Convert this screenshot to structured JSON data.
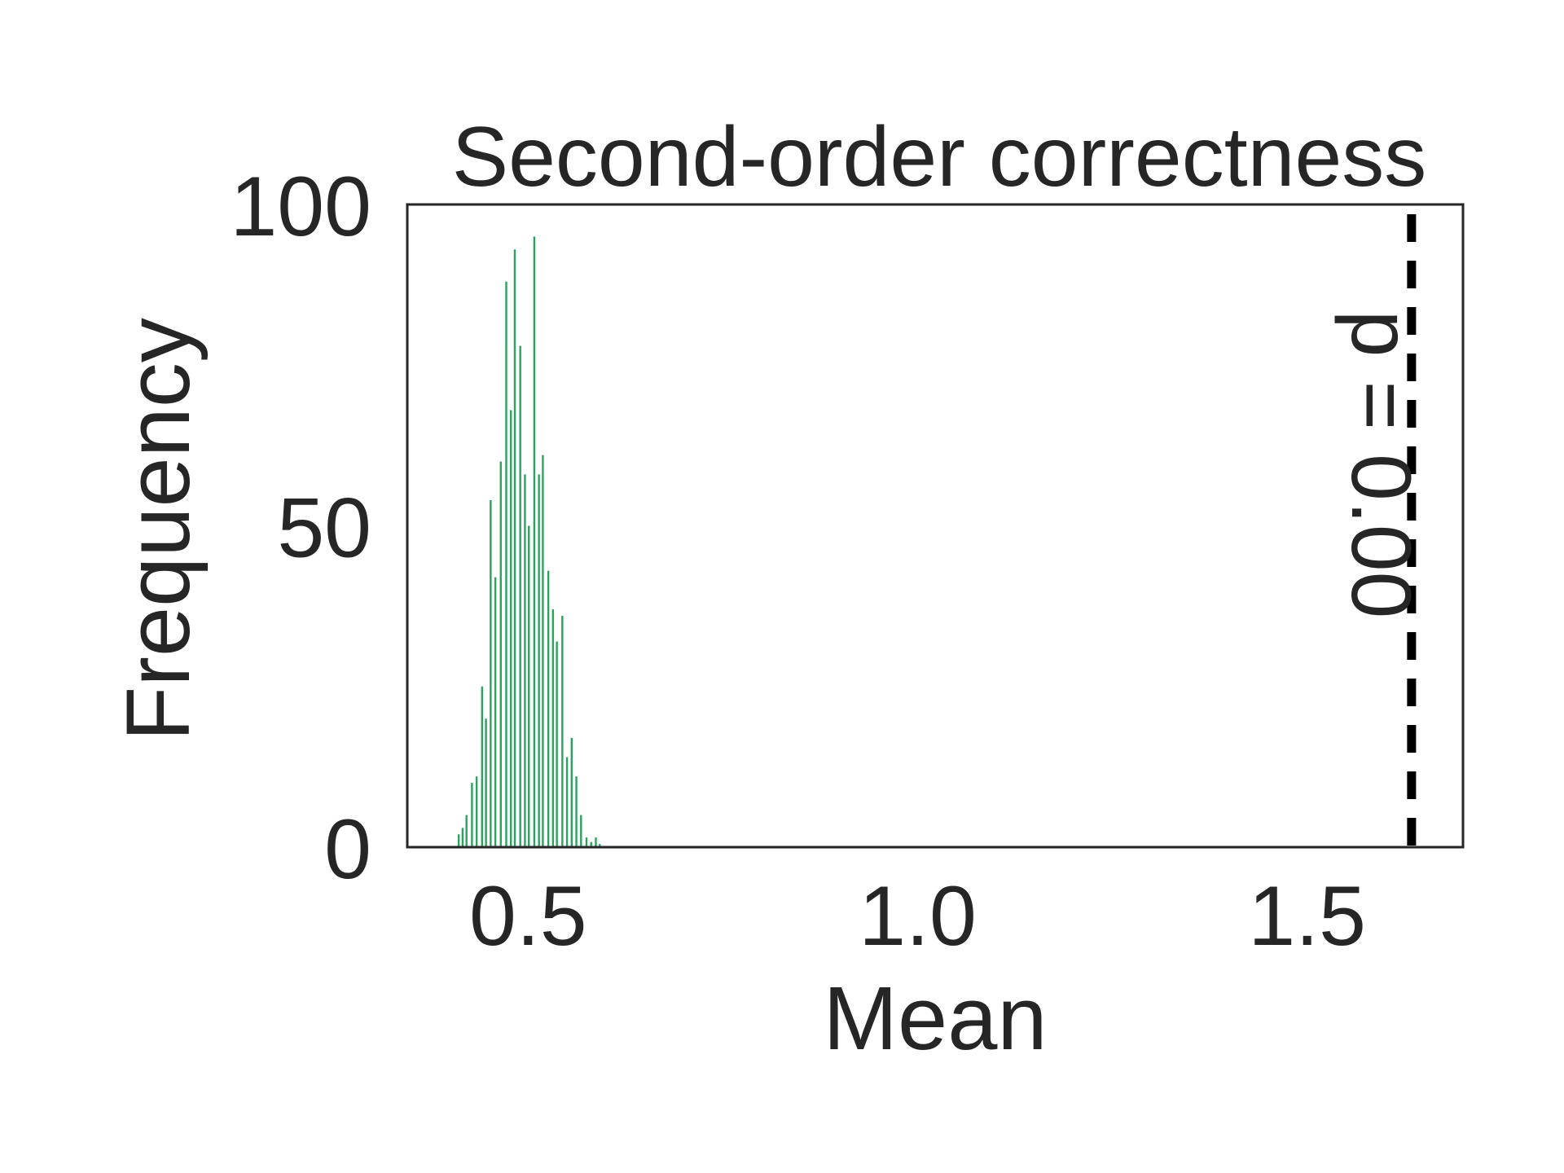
{
  "chart_data": {
    "type": "bar",
    "title": "Second-order correctness",
    "xlabel": "Mean",
    "ylabel": "Frequency",
    "xlim": [
      0.345,
      1.7
    ],
    "ylim": [
      0,
      100
    ],
    "xticks": [
      0.5,
      1.0,
      1.5
    ],
    "xtick_labels": [
      "0.5",
      "1.0",
      "1.5"
    ],
    "yticks": [
      0,
      50,
      100
    ],
    "ytick_labels": [
      "0",
      "50",
      "100"
    ],
    "grid": false,
    "bar_color": "#2ca25f",
    "marker_color": "#000000",
    "bars": [
      {
        "x": 0.411,
        "y": 2
      },
      {
        "x": 0.416,
        "y": 3
      },
      {
        "x": 0.421,
        "y": 5
      },
      {
        "x": 0.428,
        "y": 10
      },
      {
        "x": 0.434,
        "y": 11
      },
      {
        "x": 0.441,
        "y": 25
      },
      {
        "x": 0.446,
        "y": 20
      },
      {
        "x": 0.452,
        "y": 54
      },
      {
        "x": 0.458,
        "y": 42
      },
      {
        "x": 0.465,
        "y": 60
      },
      {
        "x": 0.472,
        "y": 88
      },
      {
        "x": 0.478,
        "y": 68
      },
      {
        "x": 0.483,
        "y": 93
      },
      {
        "x": 0.49,
        "y": 78
      },
      {
        "x": 0.496,
        "y": 58
      },
      {
        "x": 0.501,
        "y": 50
      },
      {
        "x": 0.508,
        "y": 95
      },
      {
        "x": 0.514,
        "y": 58
      },
      {
        "x": 0.519,
        "y": 61
      },
      {
        "x": 0.526,
        "y": 43
      },
      {
        "x": 0.532,
        "y": 37
      },
      {
        "x": 0.537,
        "y": 32
      },
      {
        "x": 0.544,
        "y": 36
      },
      {
        "x": 0.55,
        "y": 14
      },
      {
        "x": 0.556,
        "y": 17
      },
      {
        "x": 0.562,
        "y": 11
      },
      {
        "x": 0.568,
        "y": 5
      },
      {
        "x": 0.575,
        "y": 1.5
      },
      {
        "x": 0.581,
        "y": 0.8
      },
      {
        "x": 0.587,
        "y": 1.5
      },
      {
        "x": 0.592,
        "y": 0.5
      }
    ],
    "vline": {
      "x": 1.634,
      "style": "dashed",
      "label": "p = 0.00"
    }
  }
}
